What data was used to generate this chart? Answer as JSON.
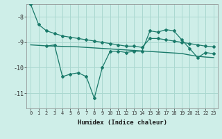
{
  "xlabel": "Humidex (Indice chaleur)",
  "bg_color": "#ceeee8",
  "grid_color": "#aad8d0",
  "line_color": "#1a7a6a",
  "line1_x": [
    0,
    1,
    2,
    3,
    4,
    5,
    6,
    7,
    8,
    9,
    10,
    11,
    12,
    13,
    14,
    15,
    16,
    17,
    18,
    19,
    20,
    21,
    22,
    23
  ],
  "line1_y": [
    -7.5,
    -8.3,
    -8.55,
    -8.65,
    -8.75,
    -8.8,
    -8.85,
    -8.9,
    -8.95,
    -9.0,
    -9.05,
    -9.1,
    -9.15,
    -9.15,
    -9.2,
    -8.85,
    -8.85,
    -8.9,
    -8.95,
    -9.0,
    -9.05,
    -9.1,
    -9.15,
    -9.18
  ],
  "line2_x": [
    2,
    3,
    4,
    5,
    6,
    7,
    8,
    9,
    10,
    11,
    12,
    13,
    14,
    15,
    16,
    17,
    18,
    19,
    20,
    21,
    22,
    23
  ],
  "line2_y": [
    -9.15,
    -9.1,
    -10.35,
    -10.25,
    -10.2,
    -10.35,
    -11.2,
    -10.0,
    -9.35,
    -9.35,
    -9.4,
    -9.35,
    -9.35,
    -8.55,
    -8.6,
    -8.5,
    -8.55,
    -8.9,
    -9.25,
    -9.6,
    -9.4,
    -9.45
  ],
  "line3_x": [
    0,
    1,
    2,
    3,
    4,
    5,
    6,
    7,
    8,
    9,
    10,
    11,
    12,
    13,
    14,
    15,
    16,
    17,
    18,
    19,
    20,
    21,
    22,
    23
  ],
  "line3_y": [
    -9.1,
    -9.12,
    -9.14,
    -9.15,
    -9.16,
    -9.17,
    -9.18,
    -9.2,
    -9.22,
    -9.24,
    -9.26,
    -9.28,
    -9.3,
    -9.32,
    -9.34,
    -9.36,
    -9.38,
    -9.4,
    -9.42,
    -9.44,
    -9.5,
    -9.55,
    -9.58,
    -9.6
  ],
  "ylim": [
    -11.6,
    -7.5
  ],
  "xlim": [
    -0.5,
    23.5
  ],
  "yticks": [
    -11,
    -10,
    -9,
    -8
  ],
  "xticks": [
    0,
    1,
    2,
    3,
    4,
    5,
    6,
    7,
    8,
    9,
    10,
    11,
    12,
    13,
    14,
    15,
    16,
    17,
    18,
    19,
    20,
    21,
    22,
    23
  ]
}
